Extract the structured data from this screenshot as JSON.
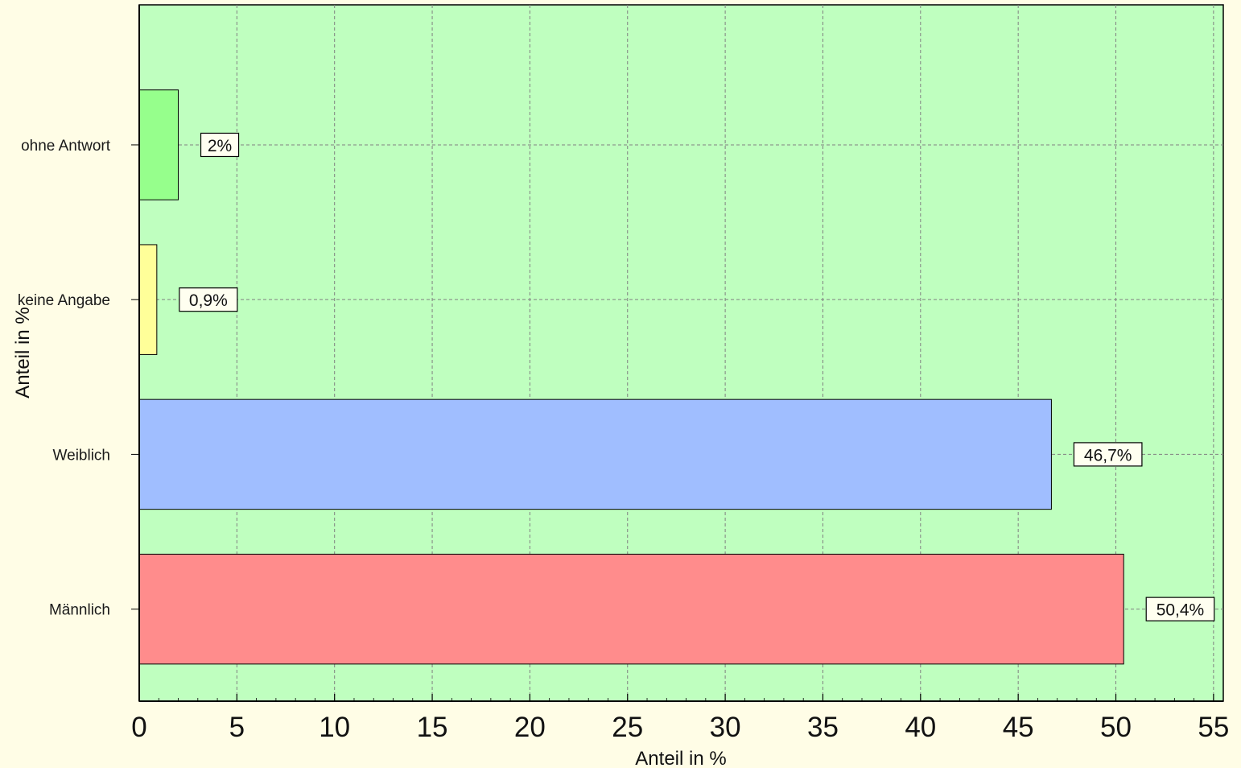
{
  "chart_data": {
    "type": "bar",
    "orientation": "horizontal",
    "categories": [
      "Männlich",
      "Weiblich",
      "keine Angabe",
      "ohne Antwort"
    ],
    "values": [
      50.4,
      46.7,
      0.9,
      2
    ],
    "data_labels": [
      "50,4%",
      "46,7%",
      "0,9%",
      "2%"
    ],
    "colors": [
      "#ff8c8c",
      "#a0beff",
      "#ffff99",
      "#96ff8c"
    ],
    "xlabel": "Anteil in %",
    "ylabel": "Anteil in %",
    "xlim": [
      0,
      55.5
    ],
    "xticks": [
      0,
      5,
      10,
      15,
      20,
      25,
      30,
      35,
      40,
      45,
      50,
      55
    ],
    "xtick_labels": [
      "0",
      "5",
      "10",
      "15",
      "20",
      "25",
      "30",
      "35",
      "40",
      "45",
      "50",
      "55"
    ],
    "grid": true,
    "plot_background": "#bfffbf",
    "page_background": "#fffde6",
    "legend": "none"
  }
}
